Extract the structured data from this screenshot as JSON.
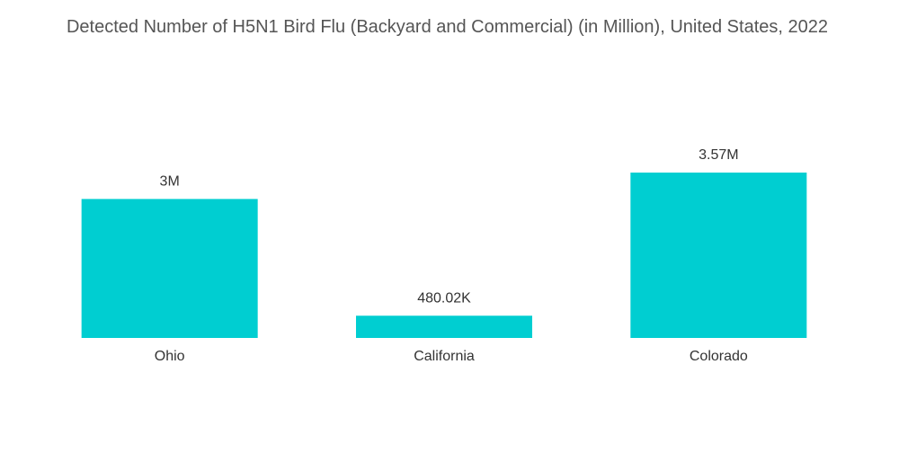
{
  "chart_data": {
    "type": "bar",
    "title": "Detected Number of H5N1 Bird Flu (Backyard and Commercial) (in Million), United States, 2022",
    "categories": [
      "Ohio",
      "California",
      "Colorado"
    ],
    "values": [
      3000000,
      480020,
      3570000
    ],
    "value_labels": [
      "3M",
      "480.02K",
      "3.57M"
    ],
    "color": "#00ced1"
  }
}
